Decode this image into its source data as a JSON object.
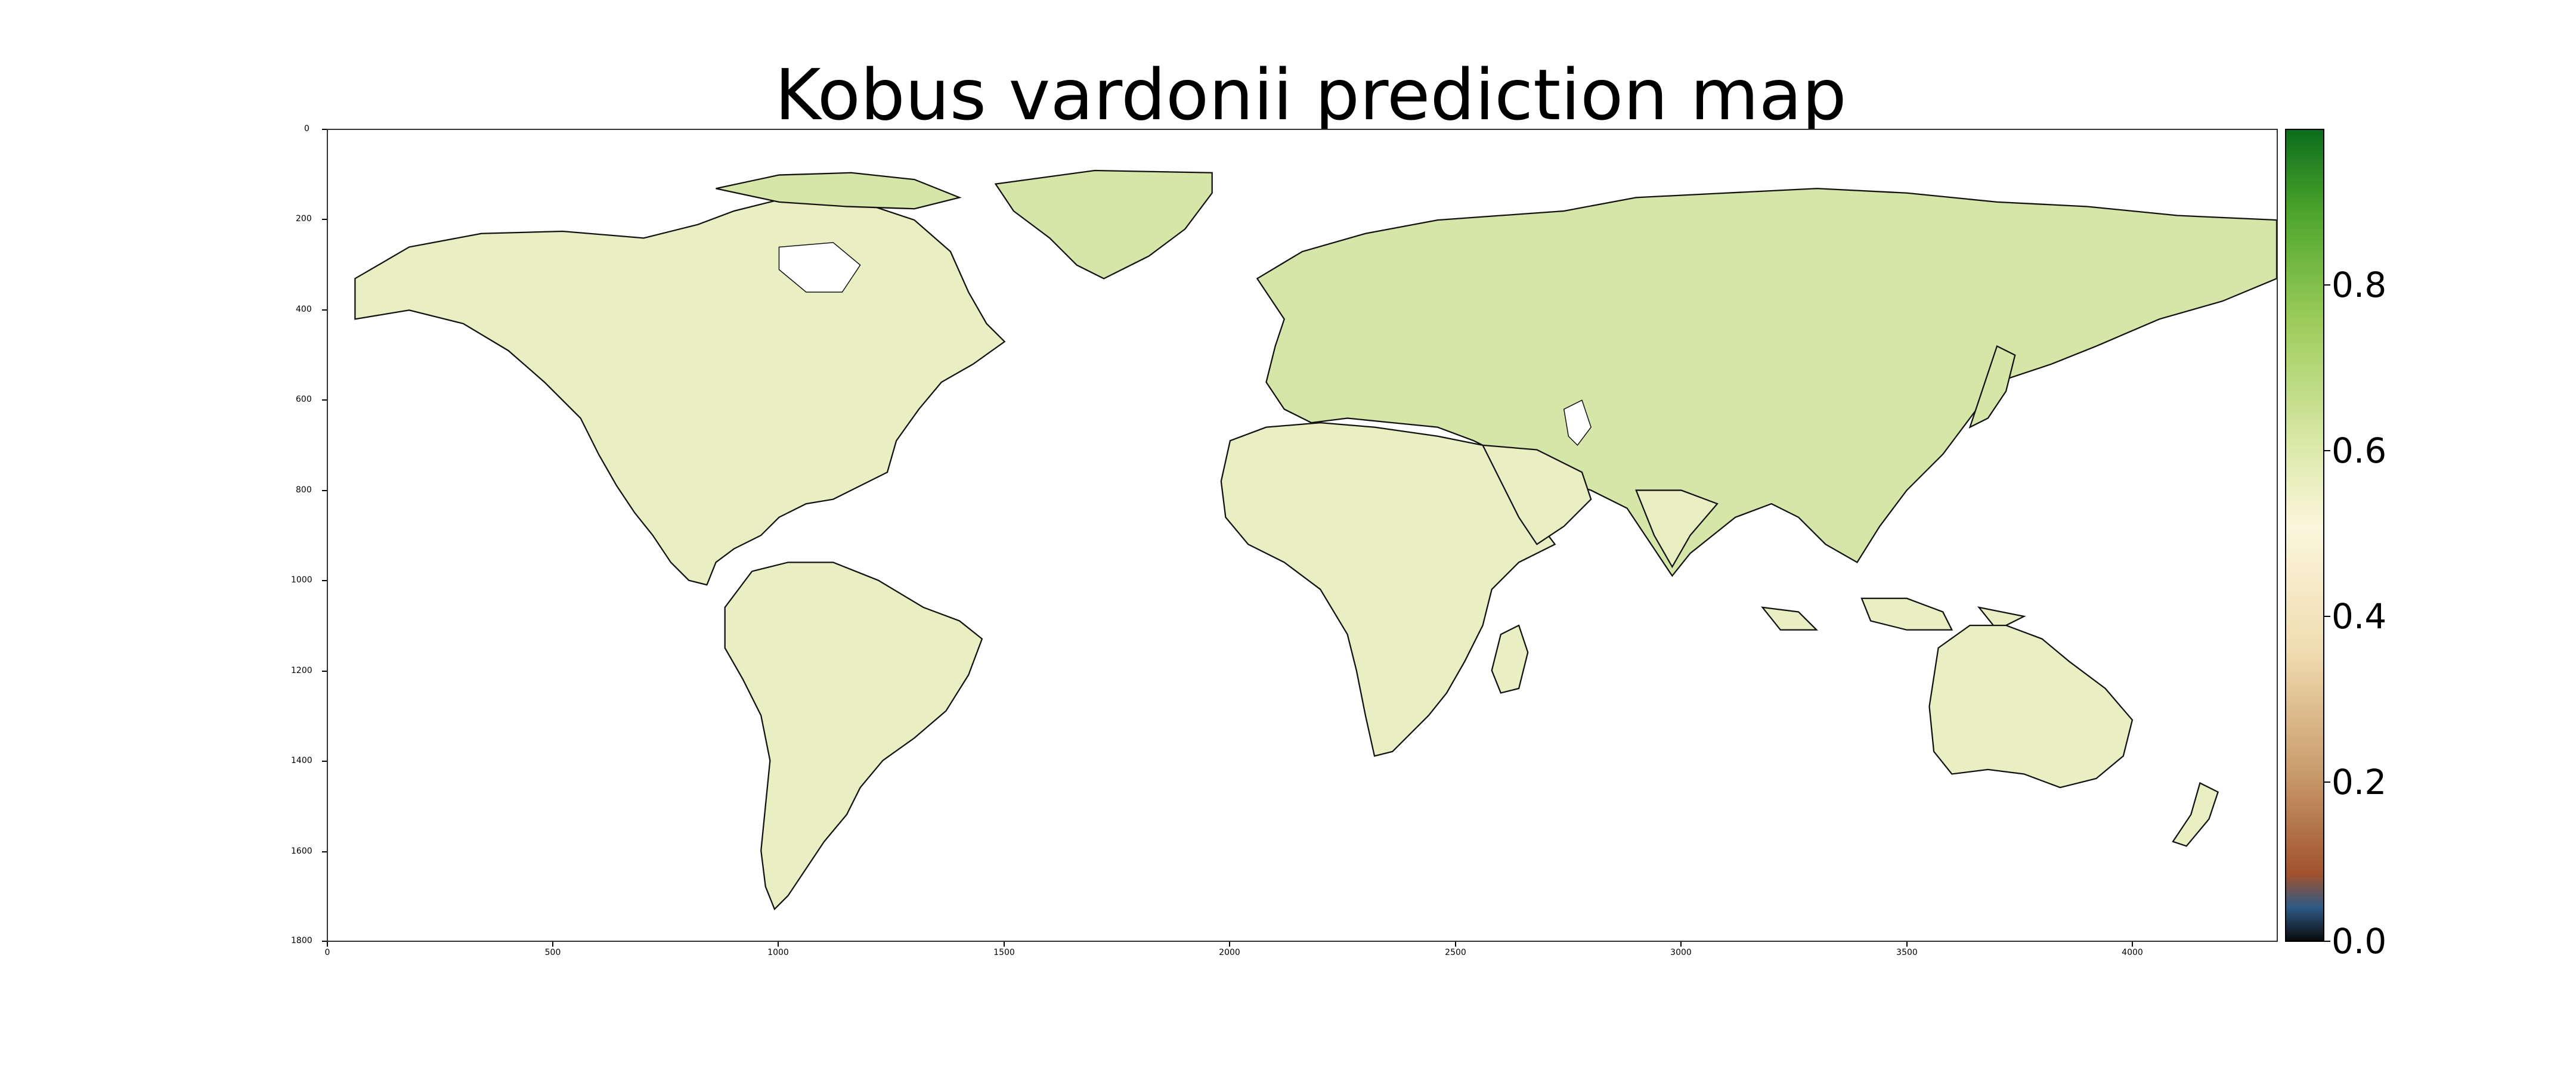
{
  "title": "Kobus vardonii prediction map",
  "map": {
    "type": "heatmap",
    "x_ticks": [
      "0",
      "500",
      "1000",
      "1500",
      "2000",
      "2500",
      "3000",
      "3500",
      "4000"
    ],
    "x_tick_values": [
      0,
      500,
      1000,
      1500,
      2000,
      2500,
      3000,
      3500,
      4000
    ],
    "y_ticks": [
      "0",
      "200",
      "400",
      "600",
      "800",
      "1000",
      "1200",
      "1400",
      "1600",
      "1800"
    ],
    "y_tick_values": [
      0,
      200,
      400,
      600,
      800,
      1000,
      1200,
      1400,
      1600,
      1800
    ],
    "x_range": [
      0,
      4320
    ],
    "y_range": [
      0,
      1800
    ],
    "land_color": "#e9efc2",
    "land_color_north": "#d6e6a8",
    "ocean_color": "#ffffff",
    "coast_color": "#111111"
  },
  "colorbar": {
    "labels": [
      "0.8",
      "0.6",
      "0.4",
      "0.2",
      "0.0"
    ],
    "values": [
      0.8,
      0.6,
      0.4,
      0.2,
      0.0
    ],
    "range": [
      0.0,
      0.98
    ],
    "stops": [
      {
        "v": 0.0,
        "c": "#0a0a0a"
      },
      {
        "v": 0.04,
        "c": "#2e5a86"
      },
      {
        "v": 0.08,
        "c": "#a0522d"
      },
      {
        "v": 0.2,
        "c": "#c89a6a"
      },
      {
        "v": 0.35,
        "c": "#f0dcb0"
      },
      {
        "v": 0.5,
        "c": "#fbf6dc"
      },
      {
        "v": 0.6,
        "c": "#dbe9a8"
      },
      {
        "v": 0.75,
        "c": "#9ccc5a"
      },
      {
        "v": 0.88,
        "c": "#4da52c"
      },
      {
        "v": 0.98,
        "c": "#0b6d1c"
      }
    ]
  }
}
